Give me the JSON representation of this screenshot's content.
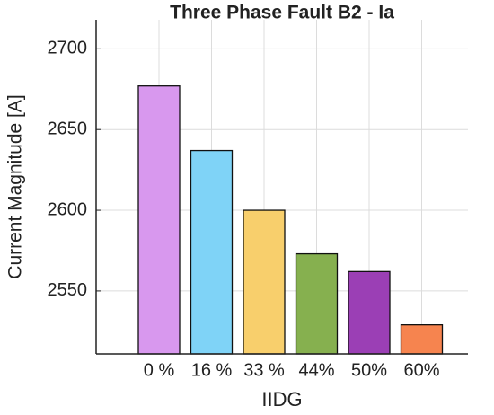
{
  "chart_data": {
    "type": "bar",
    "title": "Three Phase Fault B2 - Ia",
    "x_label": "IIDG",
    "y_label": "Current Magnitude [A]",
    "categories": [
      "0 %",
      "16 %",
      "33 %",
      "44%",
      "50%",
      "60%"
    ],
    "values": [
      2677,
      2637,
      2600,
      2573,
      2562,
      2529
    ],
    "colors": [
      "#d898ee",
      "#7fd3f7",
      "#f8cf6c",
      "#86b04f",
      "#9b3fb5",
      "#f6844f"
    ],
    "ylim": [
      2511,
      2718
    ],
    "yticks": [
      2550,
      2600,
      2650,
      2700
    ],
    "grid": true
  }
}
